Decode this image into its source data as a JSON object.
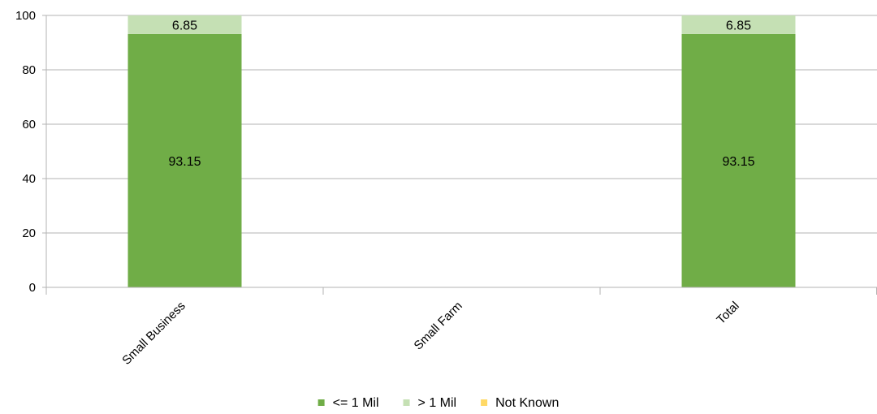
{
  "chart_data": {
    "type": "bar",
    "stacked": true,
    "categories": [
      "Small Business",
      "Small Farm",
      "Total"
    ],
    "series": [
      {
        "name": "<= 1 Mil",
        "values": [
          93.15,
          null,
          93.15
        ],
        "color": "#70ad47"
      },
      {
        "name": "> 1 Mil",
        "values": [
          6.85,
          null,
          6.85
        ],
        "color": "#c5e0b4"
      },
      {
        "name": "Not Known",
        "values": [
          null,
          null,
          null
        ],
        "color": "#ffd966"
      }
    ],
    "ylim": [
      0,
      100
    ],
    "yticks": [
      0,
      20,
      40,
      60,
      80,
      100
    ],
    "grid": true,
    "legend_position": "bottom-center"
  }
}
